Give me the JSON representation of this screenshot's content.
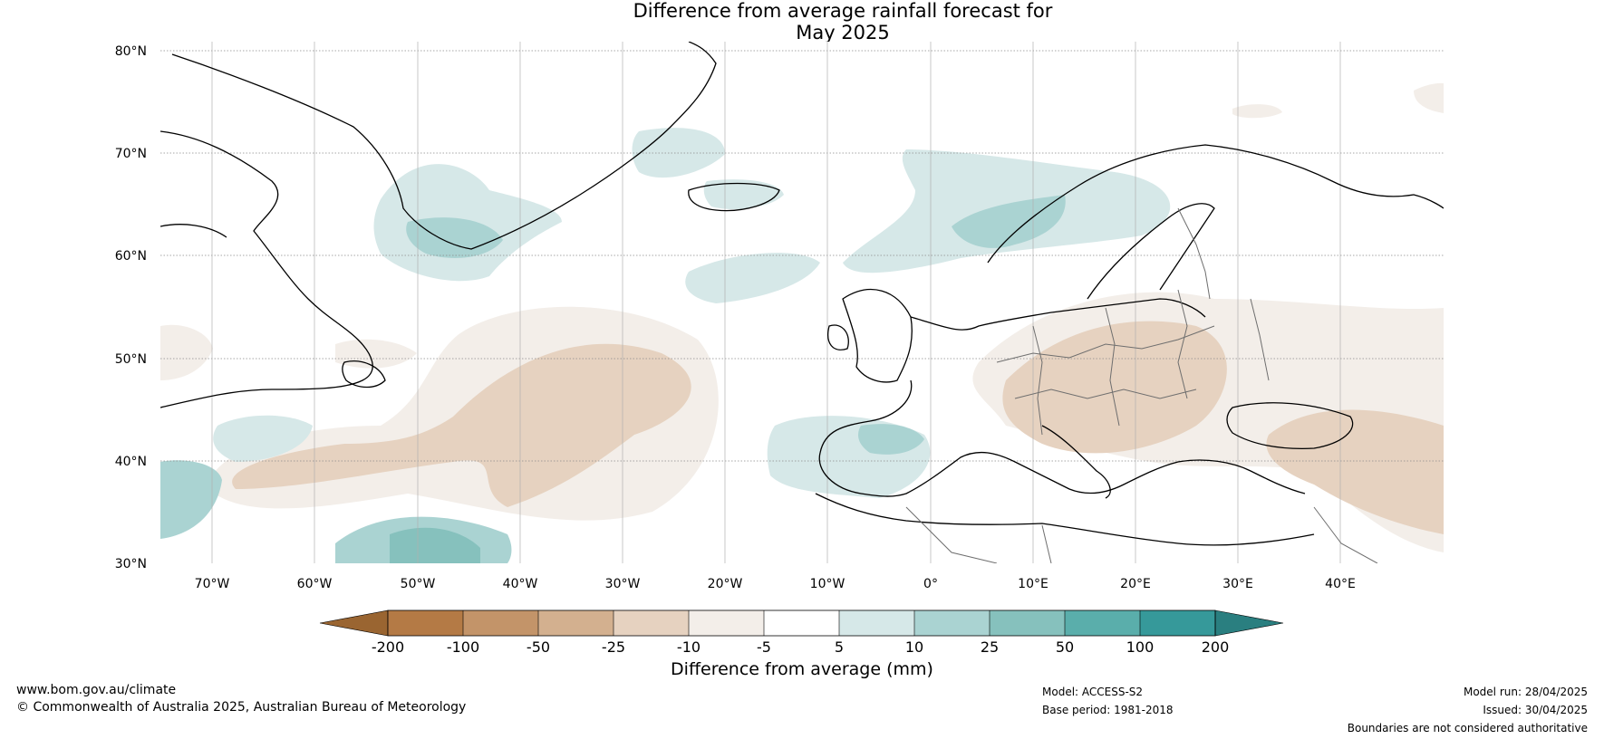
{
  "title_line1": "Difference from average rainfall forecast for",
  "title_line2": "May 2025",
  "latitude_labels": [
    "80°N",
    "70°N",
    "60°N",
    "50°N",
    "40°N",
    "30°N"
  ],
  "longitude_labels": [
    "70°W",
    "60°W",
    "50°W",
    "40°W",
    "30°W",
    "20°W",
    "10°W",
    "0°",
    "10°E",
    "20°E",
    "30°E",
    "40°E"
  ],
  "legend": {
    "title": "Difference from average (mm)",
    "tick_labels": [
      "-200",
      "-100",
      "-50",
      "-25",
      "-10",
      "-5",
      "5",
      "10",
      "25",
      "50",
      "100",
      "200"
    ],
    "colors": [
      "#9a6531",
      "#b47a45",
      "#c39469",
      "#d3b08f",
      "#e6d2c0",
      "#f3eee9",
      "#ffffff",
      "#d6e8e8",
      "#aad3d2",
      "#86c1bd",
      "#5aaeab",
      "#36999a",
      "#2a7f80"
    ]
  },
  "footer": {
    "website": "www.bom.gov.au/climate",
    "copyright": "© Commonwealth of Australia 2025, Australian Bureau of Meteorology",
    "model": "Model: ACCESS-S2",
    "base_period": "Base period: 1981-2018",
    "model_run": "Model run: 28/04/2025",
    "issued": "Issued: 30/04/2025",
    "disclaimer": "Boundaries are not considered authoritative"
  }
}
